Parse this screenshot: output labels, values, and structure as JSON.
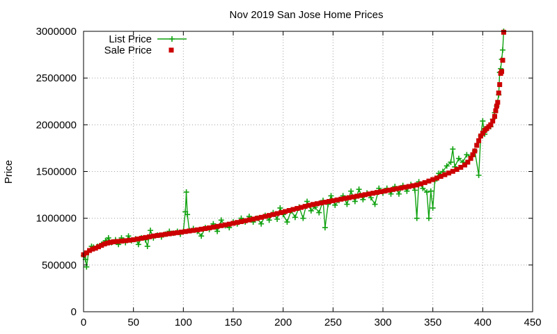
{
  "chart_data": {
    "type": "line",
    "title": "Nov 2019 San Jose Home Prices",
    "xlabel": "",
    "ylabel": "Price",
    "xlim": [
      0,
      450
    ],
    "ylim": [
      0,
      3000000
    ],
    "xticks": [
      0,
      50,
      100,
      150,
      200,
      250,
      300,
      350,
      400,
      450
    ],
    "yticks": [
      0,
      500000,
      1000000,
      1500000,
      2000000,
      2500000,
      3000000
    ],
    "grid": true,
    "legend_position": "top-left",
    "series": [
      {
        "name": "List Price",
        "color": "#0ea10e",
        "style": "line-with-plus-markers",
        "points": [
          [
            0,
            600000
          ],
          [
            2,
            560000
          ],
          [
            3,
            480000
          ],
          [
            5,
            640000
          ],
          [
            8,
            700000
          ],
          [
            10,
            690000
          ],
          [
            14,
            700000
          ],
          [
            18,
            720000
          ],
          [
            22,
            760000
          ],
          [
            25,
            790000
          ],
          [
            28,
            740000
          ],
          [
            32,
            770000
          ],
          [
            35,
            720000
          ],
          [
            38,
            790000
          ],
          [
            42,
            740000
          ],
          [
            45,
            810000
          ],
          [
            48,
            760000
          ],
          [
            52,
            780000
          ],
          [
            55,
            720000
          ],
          [
            58,
            790000
          ],
          [
            62,
            770000
          ],
          [
            64,
            700000
          ],
          [
            67,
            870000
          ],
          [
            70,
            790000
          ],
          [
            74,
            820000
          ],
          [
            78,
            800000
          ],
          [
            82,
            830000
          ],
          [
            86,
            860000
          ],
          [
            90,
            840000
          ],
          [
            94,
            860000
          ],
          [
            97,
            830000
          ],
          [
            100,
            860000
          ],
          [
            102,
            1070000
          ],
          [
            103,
            1280000
          ],
          [
            104,
            1040000
          ],
          [
            106,
            870000
          ],
          [
            110,
            890000
          ],
          [
            114,
            860000
          ],
          [
            118,
            810000
          ],
          [
            122,
            900000
          ],
          [
            126,
            880000
          ],
          [
            130,
            940000
          ],
          [
            134,
            860000
          ],
          [
            138,
            980000
          ],
          [
            142,
            920000
          ],
          [
            146,
            900000
          ],
          [
            150,
            960000
          ],
          [
            154,
            940000
          ],
          [
            158,
            1000000
          ],
          [
            162,
            960000
          ],
          [
            166,
            1020000
          ],
          [
            170,
            960000
          ],
          [
            174,
            1000000
          ],
          [
            178,
            940000
          ],
          [
            182,
            1030000
          ],
          [
            186,
            980000
          ],
          [
            190,
            1060000
          ],
          [
            194,
            990000
          ],
          [
            197,
            1110000
          ],
          [
            200,
            1040000
          ],
          [
            204,
            960000
          ],
          [
            208,
            1080000
          ],
          [
            212,
            1010000
          ],
          [
            216,
            1120000
          ],
          [
            220,
            1000000
          ],
          [
            224,
            1180000
          ],
          [
            228,
            1080000
          ],
          [
            232,
            1120000
          ],
          [
            236,
            1060000
          ],
          [
            240,
            1190000
          ],
          [
            242,
            900000
          ],
          [
            245,
            1150000
          ],
          [
            248,
            1240000
          ],
          [
            252,
            1140000
          ],
          [
            256,
            1190000
          ],
          [
            260,
            1240000
          ],
          [
            264,
            1150000
          ],
          [
            268,
            1290000
          ],
          [
            272,
            1180000
          ],
          [
            276,
            1310000
          ],
          [
            280,
            1200000
          ],
          [
            284,
            1270000
          ],
          [
            288,
            1220000
          ],
          [
            292,
            1150000
          ],
          [
            296,
            1320000
          ],
          [
            300,
            1270000
          ],
          [
            304,
            1320000
          ],
          [
            308,
            1260000
          ],
          [
            312,
            1340000
          ],
          [
            316,
            1260000
          ],
          [
            320,
            1350000
          ],
          [
            324,
            1290000
          ],
          [
            328,
            1360000
          ],
          [
            332,
            1300000
          ],
          [
            334,
            1000000
          ],
          [
            336,
            1390000
          ],
          [
            340,
            1320000
          ],
          [
            344,
            1280000
          ],
          [
            346,
            1000000
          ],
          [
            348,
            1290000
          ],
          [
            350,
            1110000
          ],
          [
            352,
            1400000
          ],
          [
            356,
            1480000
          ],
          [
            360,
            1500000
          ],
          [
            364,
            1560000
          ],
          [
            368,
            1600000
          ],
          [
            370,
            1740000
          ],
          [
            372,
            1550000
          ],
          [
            376,
            1640000
          ],
          [
            380,
            1600000
          ],
          [
            384,
            1680000
          ],
          [
            388,
            1660000
          ],
          [
            392,
            1720000
          ],
          [
            396,
            1460000
          ],
          [
            398,
            1880000
          ],
          [
            400,
            2040000
          ],
          [
            402,
            1900000
          ],
          [
            405,
            1960000
          ],
          [
            408,
            1980000
          ],
          [
            410,
            2060000
          ],
          [
            412,
            2130000
          ],
          [
            414,
            2200000
          ],
          [
            416,
            2320000
          ],
          [
            417,
            2560000
          ],
          [
            418,
            2600000
          ],
          [
            419,
            2700000
          ],
          [
            420,
            2800000
          ],
          [
            421,
            3000000
          ]
        ]
      },
      {
        "name": "Sale Price",
        "color": "#cc0000",
        "style": "square-markers",
        "points": [
          [
            0,
            610000
          ],
          [
            3,
            630000
          ],
          [
            6,
            655000
          ],
          [
            9,
            670000
          ],
          [
            12,
            680000
          ],
          [
            15,
            695000
          ],
          [
            18,
            710000
          ],
          [
            21,
            725000
          ],
          [
            24,
            735000
          ],
          [
            27,
            742000
          ],
          [
            30,
            748000
          ],
          [
            34,
            752000
          ],
          [
            38,
            756000
          ],
          [
            42,
            760000
          ],
          [
            46,
            765000
          ],
          [
            50,
            770000
          ],
          [
            54,
            778000
          ],
          [
            58,
            786000
          ],
          [
            62,
            794000
          ],
          [
            66,
            802000
          ],
          [
            70,
            810000
          ],
          [
            74,
            816000
          ],
          [
            78,
            822000
          ],
          [
            82,
            828000
          ],
          [
            86,
            834000
          ],
          [
            90,
            840000
          ],
          [
            94,
            846000
          ],
          [
            98,
            852000
          ],
          [
            102,
            858000
          ],
          [
            106,
            864000
          ],
          [
            110,
            870000
          ],
          [
            114,
            876000
          ],
          [
            118,
            883000
          ],
          [
            122,
            890000
          ],
          [
            126,
            897000
          ],
          [
            130,
            905000
          ],
          [
            134,
            913000
          ],
          [
            138,
            921000
          ],
          [
            142,
            929000
          ],
          [
            146,
            937000
          ],
          [
            150,
            946000
          ],
          [
            154,
            955000
          ],
          [
            158,
            964000
          ],
          [
            162,
            973000
          ],
          [
            166,
            982000
          ],
          [
            170,
            991000
          ],
          [
            174,
            1000000
          ],
          [
            178,
            1010000
          ],
          [
            182,
            1020000
          ],
          [
            186,
            1030000
          ],
          [
            190,
            1040000
          ],
          [
            194,
            1050000
          ],
          [
            198,
            1061000
          ],
          [
            202,
            1072000
          ],
          [
            206,
            1083000
          ],
          [
            210,
            1094000
          ],
          [
            214,
            1105000
          ],
          [
            218,
            1116000
          ],
          [
            222,
            1127000
          ],
          [
            226,
            1138000
          ],
          [
            230,
            1148000
          ],
          [
            234,
            1156000
          ],
          [
            238,
            1164000
          ],
          [
            242,
            1172000
          ],
          [
            246,
            1180000
          ],
          [
            250,
            1188000
          ],
          [
            254,
            1196000
          ],
          [
            258,
            1204000
          ],
          [
            262,
            1212000
          ],
          [
            266,
            1220000
          ],
          [
            270,
            1228000
          ],
          [
            274,
            1236000
          ],
          [
            278,
            1244000
          ],
          [
            282,
            1252000
          ],
          [
            286,
            1260000
          ],
          [
            290,
            1268000
          ],
          [
            294,
            1276000
          ],
          [
            298,
            1284000
          ],
          [
            302,
            1292000
          ],
          [
            306,
            1300000
          ],
          [
            310,
            1308000
          ],
          [
            314,
            1316000
          ],
          [
            318,
            1324000
          ],
          [
            322,
            1332000
          ],
          [
            326,
            1340000
          ],
          [
            330,
            1348000
          ],
          [
            334,
            1356000
          ],
          [
            338,
            1368000
          ],
          [
            342,
            1382000
          ],
          [
            346,
            1398000
          ],
          [
            350,
            1414000
          ],
          [
            354,
            1430000
          ],
          [
            358,
            1448000
          ],
          [
            362,
            1466000
          ],
          [
            366,
            1484000
          ],
          [
            370,
            1502000
          ],
          [
            374,
            1522000
          ],
          [
            378,
            1545000
          ],
          [
            382,
            1570000
          ],
          [
            385,
            1600000
          ],
          [
            388,
            1640000
          ],
          [
            390,
            1680000
          ],
          [
            392,
            1720000
          ],
          [
            394,
            1780000
          ],
          [
            396,
            1830000
          ],
          [
            398,
            1880000
          ],
          [
            400,
            1910000
          ],
          [
            402,
            1940000
          ],
          [
            404,
            1960000
          ],
          [
            406,
            1980000
          ],
          [
            408,
            2000000
          ],
          [
            410,
            2040000
          ],
          [
            412,
            2090000
          ],
          [
            413,
            2150000
          ],
          [
            414,
            2200000
          ],
          [
            415,
            2240000
          ],
          [
            416,
            2340000
          ],
          [
            417,
            2430000
          ],
          [
            418,
            2550000
          ],
          [
            419,
            2570000
          ],
          [
            420,
            2690000
          ],
          [
            421,
            2990000
          ]
        ]
      }
    ]
  }
}
